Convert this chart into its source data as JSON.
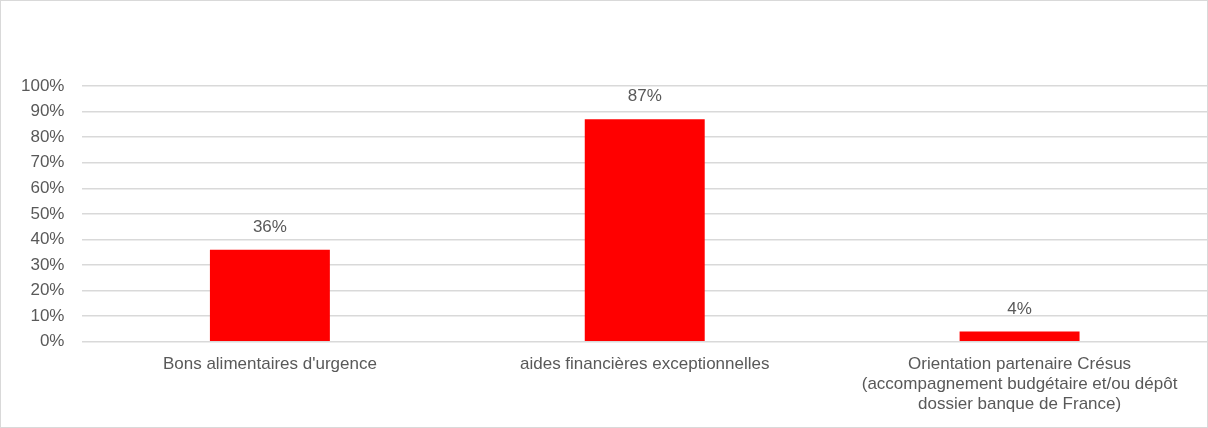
{
  "chart_data": {
    "type": "bar",
    "categories": [
      "Bons alimentaires d'urgence",
      "aides financières exceptionnelles",
      "Orientation partenaire Crésus (accompagnement budgétaire et/ou dépôt dossier banque de France)"
    ],
    "values": [
      36,
      87,
      4
    ],
    "value_labels": [
      "36%",
      "87%",
      "4%"
    ],
    "color": "#ff0000",
    "ylim": [
      0,
      100
    ],
    "yticks": [
      {
        "value": 0,
        "label": "0%"
      },
      {
        "value": 10,
        "label": "10%"
      },
      {
        "value": 20,
        "label": "20%"
      },
      {
        "value": 30,
        "label": "30%"
      },
      {
        "value": 40,
        "label": "40%"
      },
      {
        "value": 50,
        "label": "50%"
      },
      {
        "value": 60,
        "label": "60%"
      },
      {
        "value": 70,
        "label": "70%"
      },
      {
        "value": 80,
        "label": "80%"
      },
      {
        "value": 90,
        "label": "90%"
      },
      {
        "value": 100,
        "label": "100%"
      }
    ],
    "grid": "y",
    "legend": false
  }
}
